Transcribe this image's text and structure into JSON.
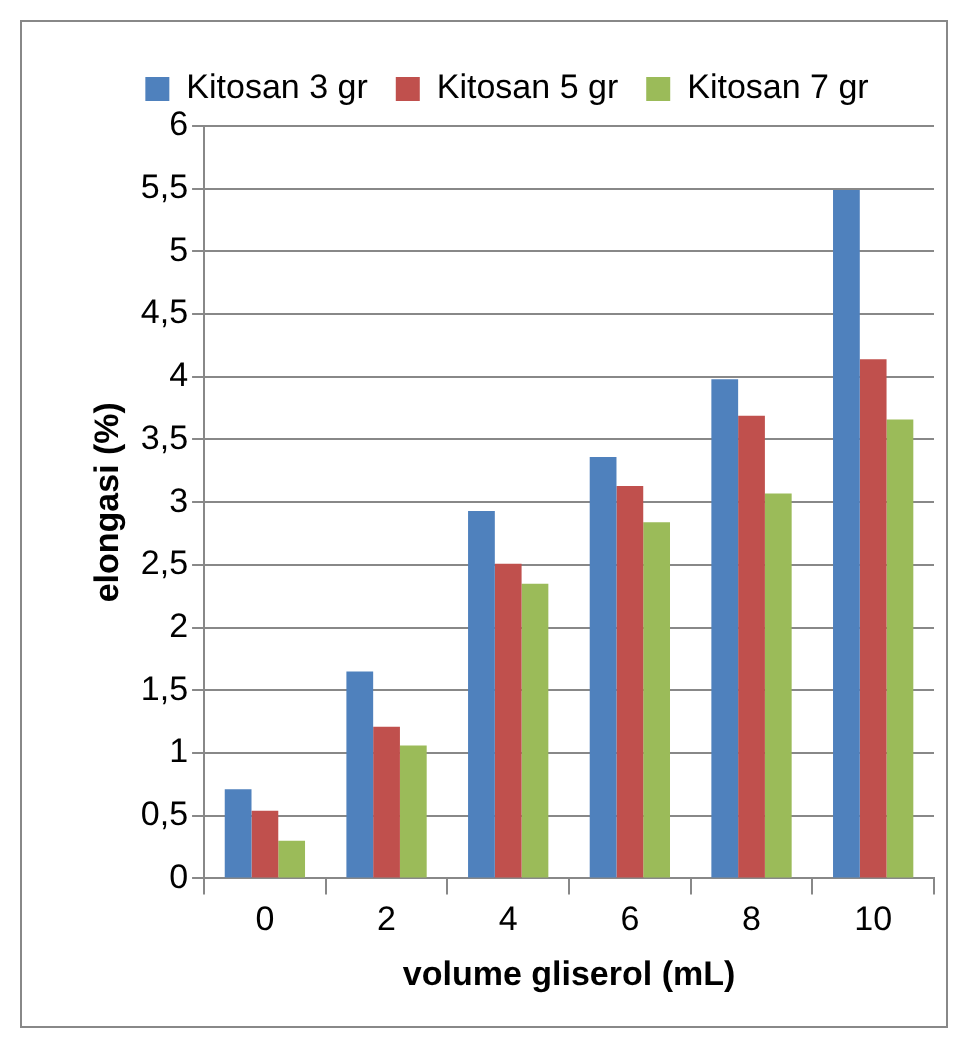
{
  "chart_data": {
    "type": "bar",
    "xlabel": "volume gliserol (mL)",
    "ylabel": "elongasi (%)",
    "categories": [
      "0",
      "2",
      "4",
      "6",
      "8",
      "10"
    ],
    "series": [
      {
        "name": "Kitosan 3 gr",
        "color": "#4f81bd",
        "values": [
          0.71,
          1.65,
          2.93,
          3.36,
          3.98,
          5.49
        ]
      },
      {
        "name": "Kitosan 5 gr",
        "color": "#c0504d",
        "values": [
          0.54,
          1.21,
          2.51,
          3.13,
          3.69,
          4.14
        ]
      },
      {
        "name": "Kitosan 7 gr",
        "color": "#9bbb59",
        "values": [
          0.3,
          1.06,
          2.35,
          2.84,
          3.07,
          3.66
        ]
      }
    ],
    "ylim": [
      0,
      6
    ],
    "yticks": [
      0,
      {
        "value": 0.5,
        "label": "0,5"
      },
      1,
      {
        "value": 1.5,
        "label": "1,5"
      },
      2,
      {
        "value": 2.5,
        "label": "2,5"
      },
      3,
      {
        "value": 3.5,
        "label": "3,5"
      },
      4,
      {
        "value": 4.5,
        "label": "4,5"
      },
      5,
      {
        "value": 5.5,
        "label": "5,5"
      },
      6
    ],
    "grid": "y",
    "legend": "top"
  }
}
